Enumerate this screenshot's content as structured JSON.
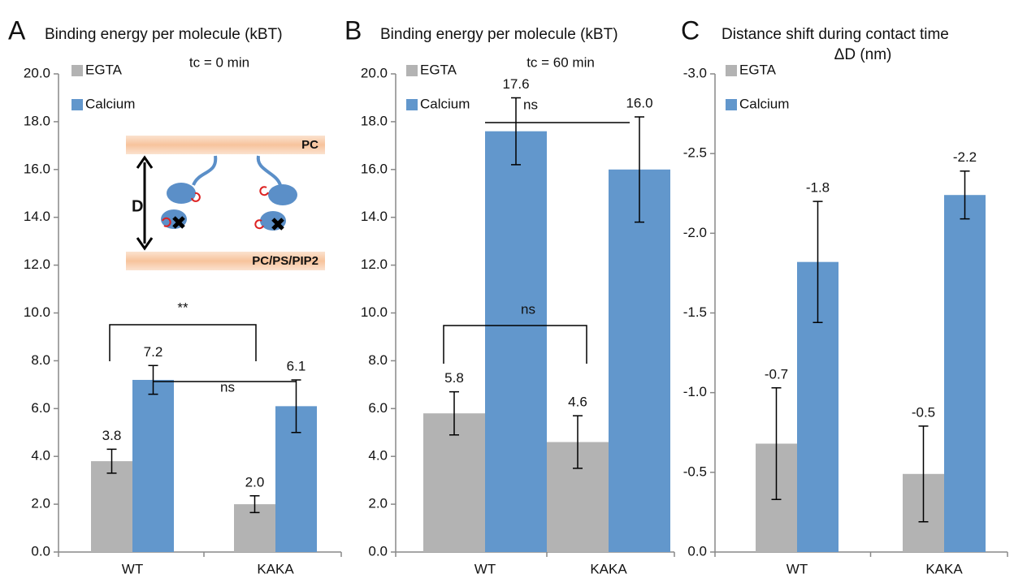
{
  "chart_data": [
    {
      "type": "bar",
      "panel_label": "A",
      "title": "Binding energy per molecule (kBT)",
      "subtitle": "tc = 0 min",
      "categories": [
        "WT",
        "KAKA"
      ],
      "series": [
        {
          "name": "EGTA",
          "color": "#b3b3b3",
          "values": [
            3.8,
            2.0
          ],
          "errors": [
            0.5,
            0.35
          ],
          "value_labels": [
            "3.8",
            "2.0"
          ]
        },
        {
          "name": "Calcium",
          "color": "#6297cc",
          "values": [
            7.2,
            6.1
          ],
          "errors": [
            0.6,
            1.1
          ],
          "value_labels": [
            "7.2",
            "6.1"
          ]
        }
      ],
      "ylim": [
        0,
        20
      ],
      "yticks": [
        {
          "value": 0,
          "label": "0.0"
        },
        {
          "value": 2,
          "label": "2.0"
        },
        {
          "value": 4,
          "label": "4.0"
        },
        {
          "value": 6,
          "label": "6.0"
        },
        {
          "value": 8,
          "label": "8.0"
        },
        {
          "value": 10,
          "label": "10.0"
        },
        {
          "value": 12,
          "label": "12.0"
        },
        {
          "value": 14,
          "label": "14.0"
        },
        {
          "value": 16,
          "label": "16.0"
        },
        {
          "value": 18,
          "label": "18.0"
        },
        {
          "value": 20,
          "label": "20.0"
        }
      ],
      "annotations": [
        "**",
        "ns"
      ],
      "inset": {
        "top_label": "PC",
        "bottom_label": "PC/PS/PIP2",
        "distance_label": "D"
      }
    },
    {
      "type": "bar",
      "panel_label": "B",
      "title": "Binding energy per molecule (kBT)",
      "subtitle": "tc = 60 min",
      "categories": [
        "WT",
        "KAKA"
      ],
      "series": [
        {
          "name": "EGTA",
          "color": "#b3b3b3",
          "values": [
            5.8,
            4.6
          ],
          "errors": [
            0.9,
            1.1
          ],
          "value_labels": [
            "5.8",
            "4.6"
          ]
        },
        {
          "name": "Calcium",
          "color": "#6297cc",
          "values": [
            17.6,
            16.0
          ],
          "errors": [
            1.4,
            2.2
          ],
          "value_labels": [
            "17.6",
            "16.0"
          ]
        }
      ],
      "ylim": [
        0,
        20
      ],
      "yticks": [
        {
          "value": 0,
          "label": "0.0"
        },
        {
          "value": 2,
          "label": "2.0"
        },
        {
          "value": 4,
          "label": "4.0"
        },
        {
          "value": 6,
          "label": "6.0"
        },
        {
          "value": 8,
          "label": "8.0"
        },
        {
          "value": 10,
          "label": "10.0"
        },
        {
          "value": 12,
          "label": "12.0"
        },
        {
          "value": 14,
          "label": "14.0"
        },
        {
          "value": 16,
          "label": "16.0"
        },
        {
          "value": 18,
          "label": "18.0"
        },
        {
          "value": 20,
          "label": "20.0"
        }
      ],
      "annotations": [
        "ns",
        "ns"
      ]
    },
    {
      "type": "bar",
      "panel_label": "C",
      "title": "Distance shift during contact time",
      "subtitle": "ΔD (nm)",
      "categories": [
        "WT",
        "KAKA"
      ],
      "series": [
        {
          "name": "EGTA",
          "color": "#b3b3b3",
          "values": [
            -0.68,
            -0.49
          ],
          "errors": [
            0.35,
            0.3
          ],
          "value_labels": [
            "-0.7",
            "-0.5"
          ]
        },
        {
          "name": "Calcium",
          "color": "#6297cc",
          "values": [
            -1.82,
            -2.24
          ],
          "errors": [
            0.38,
            0.15
          ],
          "value_labels": [
            "-1.8",
            "-2.2"
          ]
        }
      ],
      "ylim": [
        0,
        -3
      ],
      "yticks": [
        {
          "value": 0,
          "label": "0.0"
        },
        {
          "value": -0.5,
          "label": "-0.5"
        },
        {
          "value": -1,
          "label": "-1.0"
        },
        {
          "value": -1.5,
          "label": "-1.5"
        },
        {
          "value": -2,
          "label": "-2.0"
        },
        {
          "value": -2.5,
          "label": "-2.5"
        },
        {
          "value": -3,
          "label": "-3.0"
        }
      ]
    }
  ]
}
